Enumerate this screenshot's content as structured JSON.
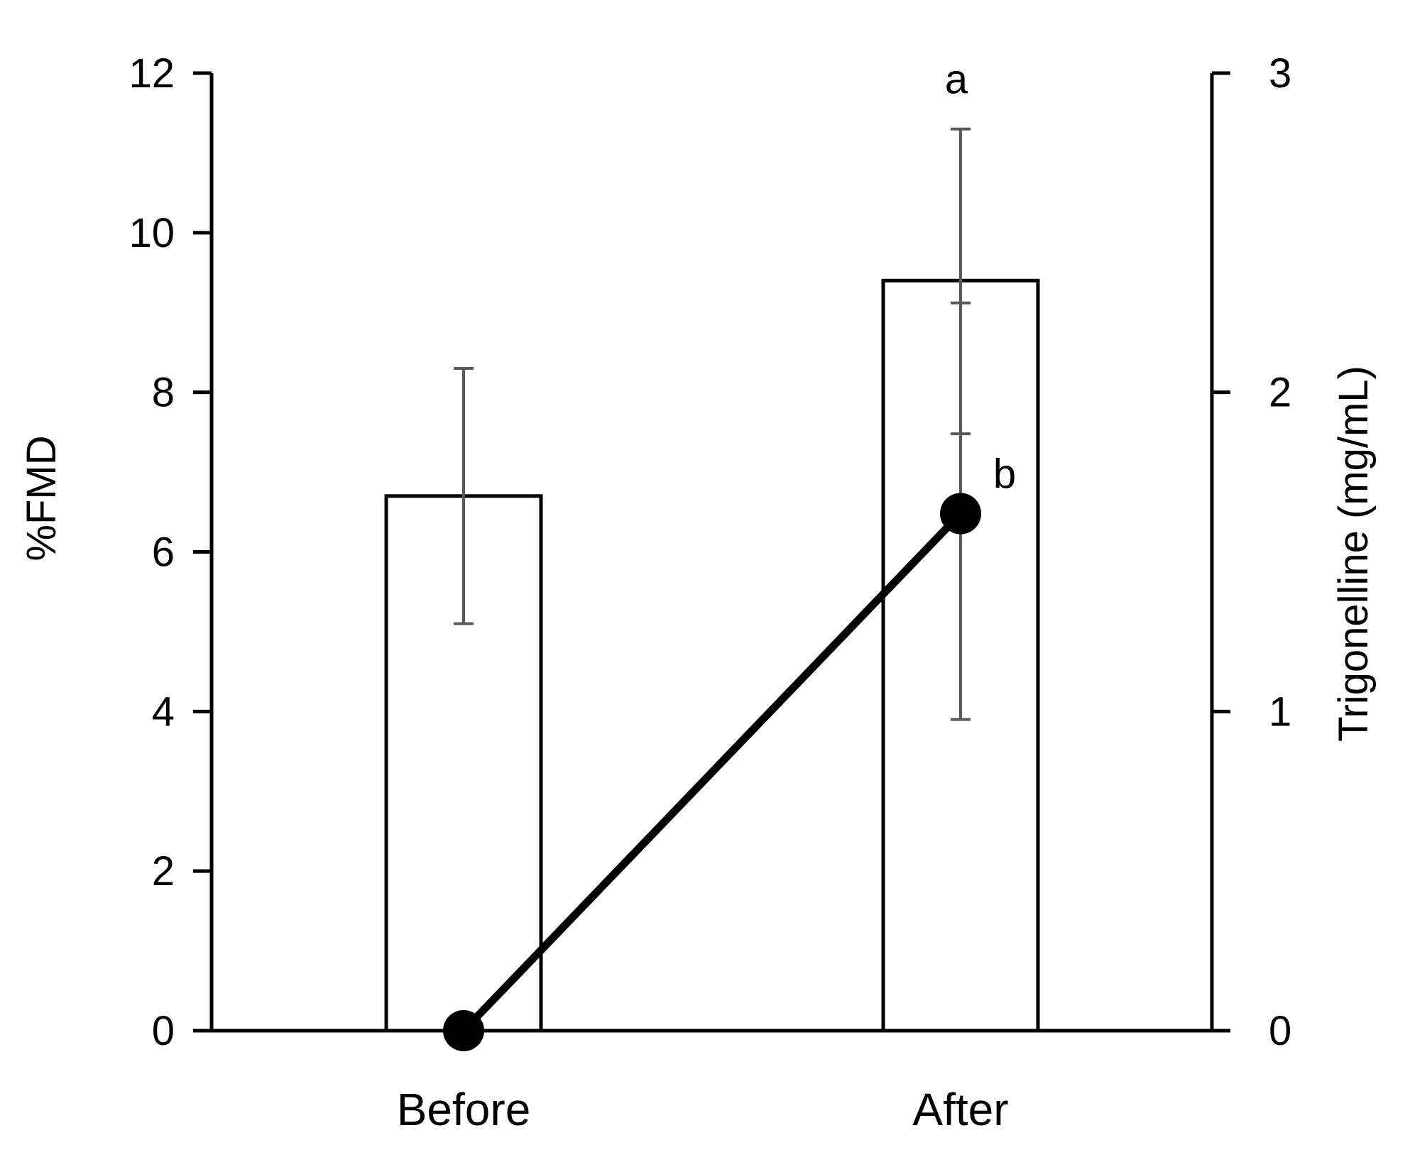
{
  "chart_data": {
    "type": "bar",
    "categories": [
      "Before",
      "After"
    ],
    "left_axis": {
      "label": "%FMD",
      "range": [
        0,
        12
      ],
      "ticks": [
        0,
        2,
        4,
        6,
        8,
        10,
        12
      ],
      "tick_labels": [
        "0",
        "2",
        "4",
        "6",
        "8",
        "10",
        "12"
      ]
    },
    "right_axis": {
      "label": "Trigonelline (mg/mL)",
      "range": [
        0,
        3
      ],
      "ticks": [
        0,
        1,
        2,
        3
      ],
      "tick_labels": [
        "0",
        "1",
        "2",
        "3"
      ]
    },
    "bar_series": {
      "axis": "left",
      "values": [
        6.7,
        9.4
      ],
      "error_low": [
        5.1,
        3.9
      ],
      "error_high": [
        8.3,
        11.3
      ],
      "fill": "#ffffff",
      "stroke": "#000000"
    },
    "line_series": {
      "axis": "right",
      "values": [
        0,
        1.62
      ],
      "error_low": [
        0,
        1.87
      ],
      "error_high": [
        0,
        2.28
      ],
      "color": "#000000"
    },
    "annotations": [
      {
        "text": "a",
        "category": "After",
        "refers_to": "bar"
      },
      {
        "text": "b",
        "category": "After",
        "refers_to": "line"
      }
    ],
    "error_bar_color": "#595959",
    "grid": false,
    "legend": "none"
  }
}
